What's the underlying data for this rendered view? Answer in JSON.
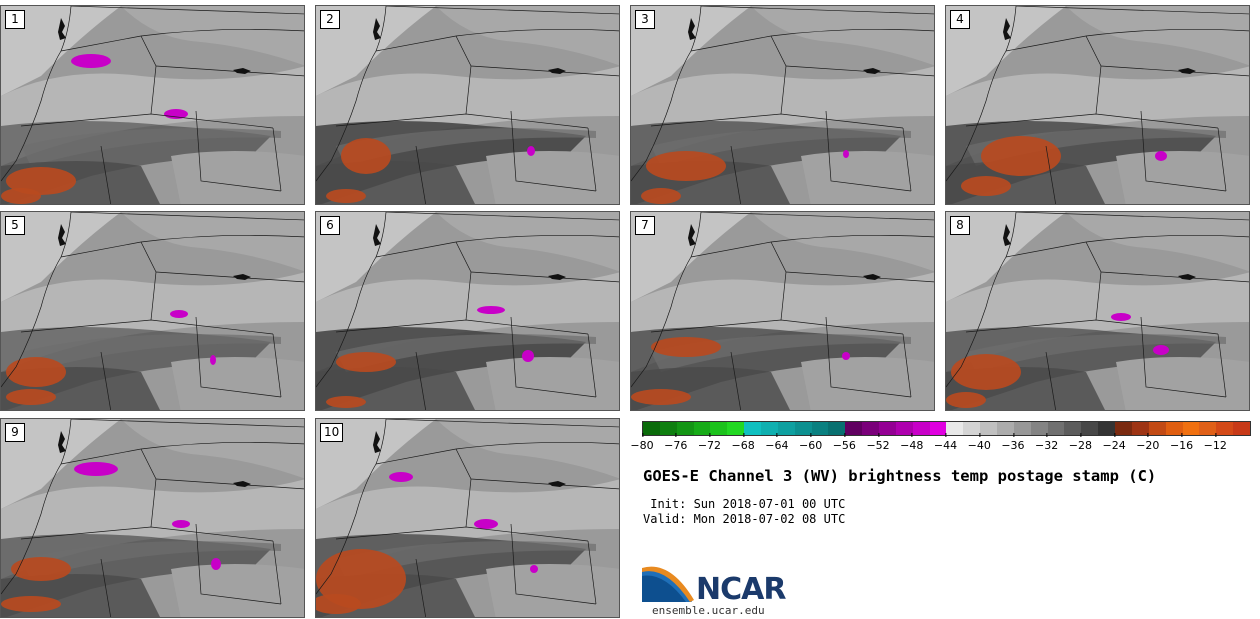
{
  "figure": {
    "title": "GOES-E Channel 3 (WV) brightness temp postage stamp (C)",
    "init_label": " Init: Sun 2018-07-01 00 UTC",
    "valid_label": "Valid: Mon 2018-07-02 08 UTC"
  },
  "panels": [
    {
      "num": "1"
    },
    {
      "num": "2"
    },
    {
      "num": "3"
    },
    {
      "num": "4"
    },
    {
      "num": "5"
    },
    {
      "num": "6"
    },
    {
      "num": "7"
    },
    {
      "num": "8"
    },
    {
      "num": "9"
    },
    {
      "num": "10"
    }
  ],
  "colorbar": {
    "ticks": [
      "−80",
      "−76",
      "−72",
      "−68",
      "−64",
      "−60",
      "−56",
      "−52",
      "−48",
      "−44",
      "−40",
      "−36",
      "−32",
      "−28",
      "−24",
      "−20",
      "−16",
      "−12"
    ],
    "colors": [
      "#0a6b0a",
      "#0f7f10",
      "#139514",
      "#17ab18",
      "#1cc21c",
      "#22d822",
      "#10c0c0",
      "#10b0b0",
      "#0ea0a0",
      "#0c9090",
      "#0a8080",
      "#087070",
      "#600060",
      "#7a007a",
      "#940094",
      "#ae00ae",
      "#c800c8",
      "#e000e0",
      "#e8e8e8",
      "#d4d4d4",
      "#c0c0c0",
      "#acacac",
      "#989898",
      "#848484",
      "#707070",
      "#5c5c5c",
      "#484848",
      "#343434",
      "#7a2a10",
      "#9e3414",
      "#c24a14",
      "#e05e10",
      "#f07010",
      "#e06018",
      "#d44a18",
      "#c83a18"
    ]
  },
  "logo": {
    "org": "NCAR",
    "url": "ensemble.ucar.edu"
  },
  "colors": {
    "moist": "#3a3a3a",
    "dry": "#b8b8b8",
    "cold": "#c800c8",
    "warm": "#b84a20"
  }
}
